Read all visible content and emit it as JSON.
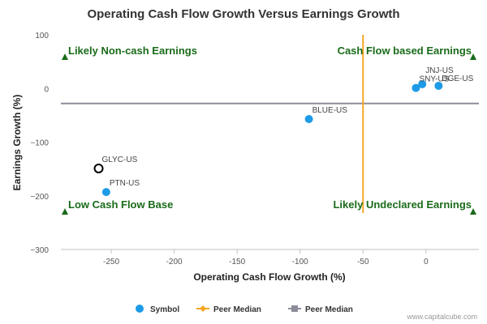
{
  "chart_data": {
    "type": "scatter",
    "title": "Operating Cash Flow Growth Versus Earnings Growth",
    "xlabel": "Operating Cash Flow Growth (%)",
    "ylabel": "Earnings Growth (%)",
    "xlim": [
      -290,
      42
    ],
    "ylim": [
      -300,
      100
    ],
    "xticks": [
      -250,
      -200,
      -150,
      -100,
      -50,
      0
    ],
    "yticks": [
      100,
      0,
      -100,
      -200,
      -300
    ],
    "xtick_labels": [
      "-250",
      "-200",
      "-150",
      "-100",
      "-50",
      "0"
    ],
    "ytick_labels": [
      "100",
      "0",
      "−100",
      "−200",
      "−300"
    ],
    "points": [
      {
        "label": "JNJ-US",
        "x": -3,
        "y": 8,
        "highlight": false
      },
      {
        "label": "SNY-US",
        "x": -8,
        "y": 1,
        "highlight": false
      },
      {
        "label": "DGE-US",
        "x": 10,
        "y": 5,
        "highlight": false
      },
      {
        "label": "BLUE-US",
        "x": -93,
        "y": -57,
        "highlight": false
      },
      {
        "label": "GLYC-US",
        "x": -260,
        "y": -149,
        "highlight": true
      },
      {
        "label": "PTN-US",
        "x": -254,
        "y": -193,
        "highlight": false
      }
    ],
    "peer_median_x": -50,
    "peer_median_y": -28,
    "quadrants": {
      "top_left": "Likely Non-cash Earnings",
      "top_right": "Cash Flow based Earnings",
      "bottom_left": "Low Cash Flow Base",
      "bottom_right": "Likely Undeclared Earnings"
    },
    "legend": [
      {
        "label": "Symbol",
        "color": "#1e9be6",
        "marker": "circle"
      },
      {
        "label": "Peer Median",
        "color": "#f5a623",
        "marker": "diamond"
      },
      {
        "label": "Peer Median",
        "color": "#8c8c9a",
        "marker": "square"
      }
    ],
    "colors": {
      "point": "#1e9be6",
      "highlight_stroke": "#000000",
      "median_x_line": "#f5a623",
      "median_y_line": "#8c8c9a",
      "quadrant_text": "#1a6b1a"
    },
    "grid": false,
    "legend_position": "bottom-center"
  },
  "credit": "www.capitalcube.com"
}
